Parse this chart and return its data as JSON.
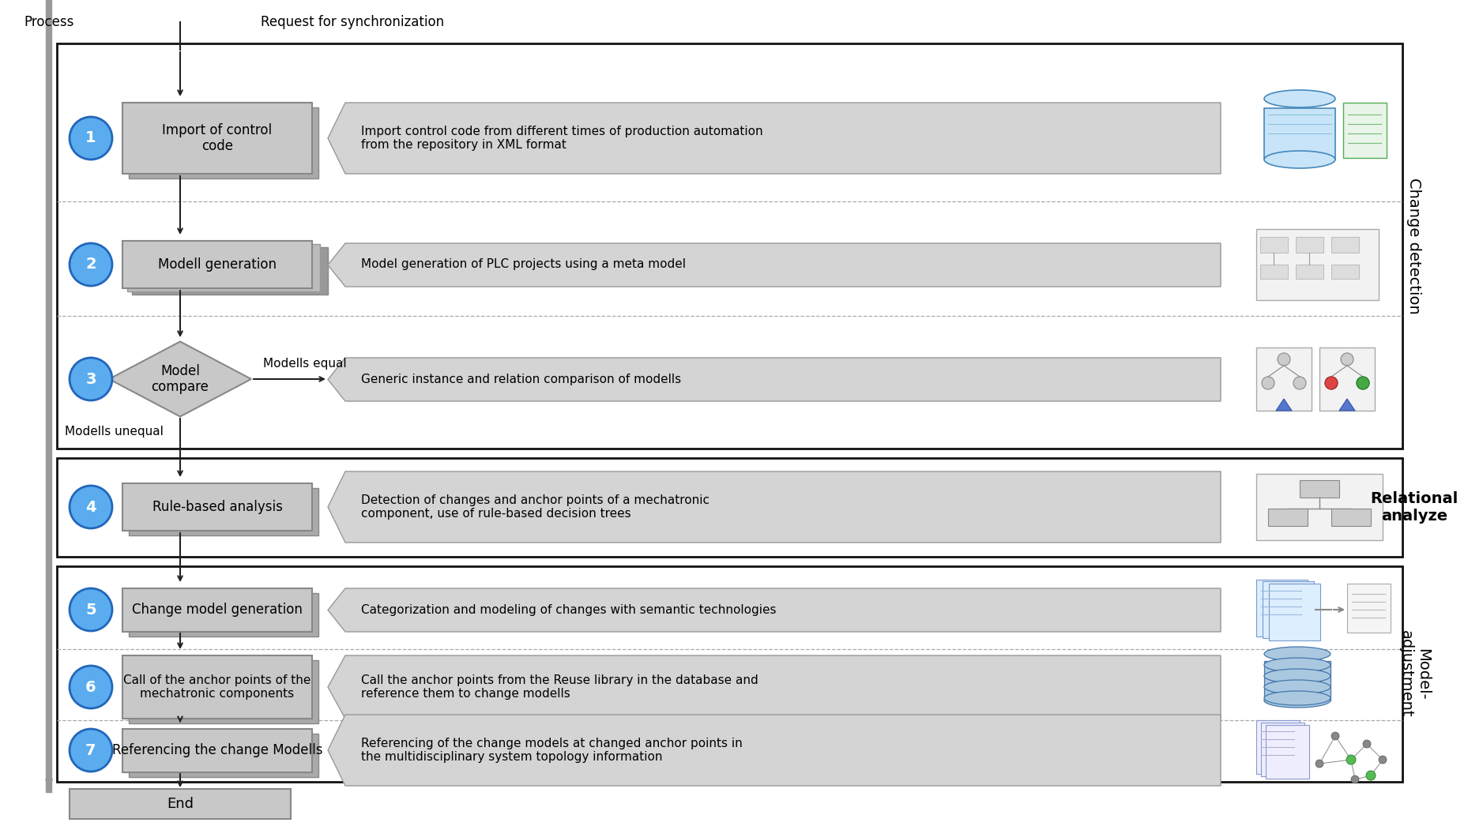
{
  "bg_color": "#ffffff",
  "process_label": "Process",
  "sync_label": "Request for synchronization",
  "end_label": "End",
  "steps": [
    {
      "num": "1",
      "box_text": "Import of control\ncode",
      "desc": "Import control code from different times of production automation\nfrom the repository in XML format"
    },
    {
      "num": "2",
      "box_text": "Modell generation",
      "desc": "Model generation of PLC projects using a meta model"
    },
    {
      "num": "3",
      "box_text": "Model\ncompare",
      "desc": "Generic instance and relation comparison of modells",
      "is_diamond": true
    },
    {
      "num": "4",
      "box_text": "Rule-based analysis",
      "desc": "Detection of changes and anchor points of a mechatronic\ncomponent, use of rule-based decision trees"
    },
    {
      "num": "5",
      "box_text": "Change model generation",
      "desc": "Categorization and modeling of changes with semantic technologies"
    },
    {
      "num": "6",
      "box_text": "Call of the anchor points of the\nmechatronic components",
      "desc": "Call the anchor points from the Reuse library in the database and\nreference them to change modells"
    },
    {
      "num": "7",
      "box_text": "Referencing the change Modells",
      "desc": "Referencing of the change models at changed anchor points in\nthe multidisciplinary system topology information"
    }
  ],
  "section_labels": [
    "Change detection",
    "Relational\nanalyze",
    "Model-\nadjustment"
  ],
  "modells_equal": "Modells equal",
  "modells_unequal": "Modells unequal",
  "circle_color": "#5aacee",
  "circle_edge": "#2266bb",
  "box_fill": "#c8c8c8",
  "box_edge": "#888888",
  "box_shadow": "#aaaaaa",
  "arrow_color": "#222222",
  "section_border": "#111111",
  "desc_fill": "#d4d4d4",
  "desc_edge": "#999999",
  "process_line_color": "#999999",
  "dashed_line_color": "#aaaaaa"
}
